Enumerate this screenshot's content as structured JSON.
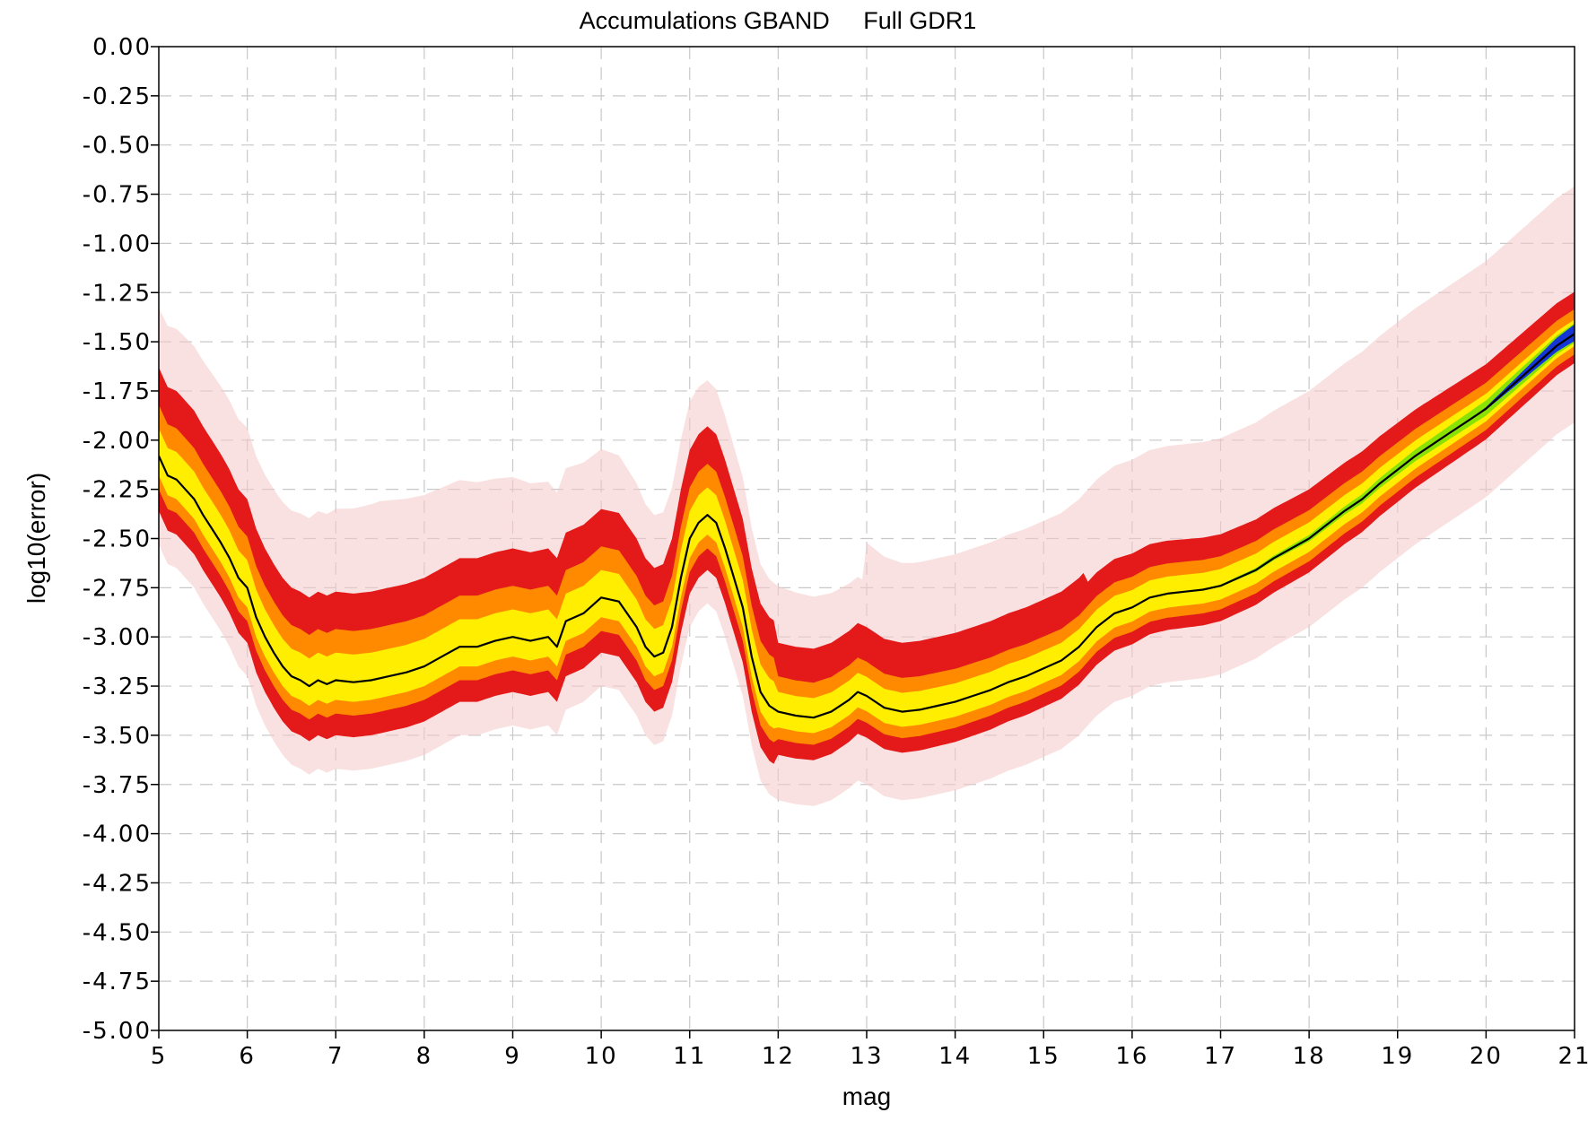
{
  "chart_data": {
    "type": "heatmap",
    "title": "Accumulations GBAND     Full GDR1",
    "xlabel": "mag",
    "ylabel": "log10(error)",
    "xlim": [
      5,
      21
    ],
    "ylim": [
      -5.0,
      0.0
    ],
    "x_ticks": [
      "5",
      "6",
      "7",
      "8",
      "9",
      "10",
      "11",
      "12",
      "13",
      "14",
      "15",
      "16",
      "17",
      "18",
      "19",
      "20",
      "21"
    ],
    "y_ticks": [
      "0.00",
      "-0.25",
      "-0.50",
      "-0.75",
      "-1.00",
      "-1.25",
      "-1.50",
      "-1.75",
      "-2.00",
      "-2.25",
      "-2.50",
      "-2.75",
      "-3.00",
      "-3.25",
      "-3.50",
      "-3.75",
      "-4.00",
      "-4.25",
      "-4.50",
      "-4.75",
      "-5.00"
    ],
    "grid": true,
    "colormap": [
      "#ffffff",
      "#f6c8c8",
      "#e41a1a",
      "#ff8a00",
      "#ffee00",
      "#7ce000",
      "#00b0a0",
      "#0018ff"
    ],
    "median_line_color": "#000000",
    "series": [
      {
        "x": [
          5.0,
          5.1,
          5.2,
          5.3,
          5.4,
          5.5,
          5.6,
          5.7,
          5.8,
          5.9,
          6.0,
          6.1,
          6.2,
          6.3,
          6.4,
          6.5,
          6.6,
          6.7,
          6.8,
          6.9,
          7.0,
          7.2,
          7.4,
          7.6,
          7.8,
          8.0,
          8.2,
          8.4,
          8.6,
          8.8,
          9.0,
          9.2,
          9.4,
          9.5,
          9.6,
          9.8,
          10.0,
          10.2,
          10.4,
          10.5,
          10.6,
          10.7,
          10.8,
          10.9,
          11.0,
          11.1,
          11.2,
          11.3,
          11.4,
          11.5,
          11.6,
          11.7,
          11.8,
          11.9,
          12.0,
          12.2,
          12.4,
          12.6,
          12.8,
          12.9,
          13.0,
          13.2,
          13.4,
          13.6,
          13.8,
          14.0,
          14.2,
          14.4,
          14.6,
          14.8,
          15.0,
          15.2,
          15.4,
          15.6,
          15.8,
          16.0,
          16.2,
          16.4,
          16.6,
          16.8,
          17.0,
          17.2,
          17.4,
          17.6,
          17.8,
          18.0,
          18.2,
          18.4,
          18.6,
          18.8,
          19.0,
          19.2,
          19.4,
          19.6,
          19.8,
          20.0,
          20.2,
          20.4,
          20.6,
          20.8,
          21.0
        ],
        "values": [
          -2.08,
          -2.18,
          -2.2,
          -2.25,
          -2.3,
          -2.38,
          -2.45,
          -2.52,
          -2.6,
          -2.7,
          -2.75,
          -2.9,
          -3.0,
          -3.08,
          -3.15,
          -3.2,
          -3.22,
          -3.25,
          -3.22,
          -3.24,
          -3.22,
          -3.23,
          -3.22,
          -3.2,
          -3.18,
          -3.15,
          -3.1,
          -3.05,
          -3.05,
          -3.02,
          -3.0,
          -3.02,
          -3.0,
          -3.05,
          -2.92,
          -2.88,
          -2.8,
          -2.82,
          -2.95,
          -3.05,
          -3.1,
          -3.08,
          -2.95,
          -2.7,
          -2.5,
          -2.42,
          -2.38,
          -2.42,
          -2.55,
          -2.7,
          -2.85,
          -3.1,
          -3.28,
          -3.35,
          -3.38,
          -3.4,
          -3.41,
          -3.38,
          -3.32,
          -3.28,
          -3.3,
          -3.36,
          -3.38,
          -3.37,
          -3.35,
          -3.33,
          -3.3,
          -3.27,
          -3.23,
          -3.2,
          -3.16,
          -3.12,
          -3.05,
          -2.95,
          -2.88,
          -2.85,
          -2.8,
          -2.78,
          -2.77,
          -2.76,
          -2.74,
          -2.7,
          -2.66,
          -2.6,
          -2.55,
          -2.5,
          -2.43,
          -2.36,
          -2.3,
          -2.22,
          -2.15,
          -2.08,
          -2.02,
          -1.96,
          -1.9,
          -1.84,
          -1.76,
          -1.68,
          -1.6,
          -1.52,
          -1.46
        ]
      }
    ]
  }
}
